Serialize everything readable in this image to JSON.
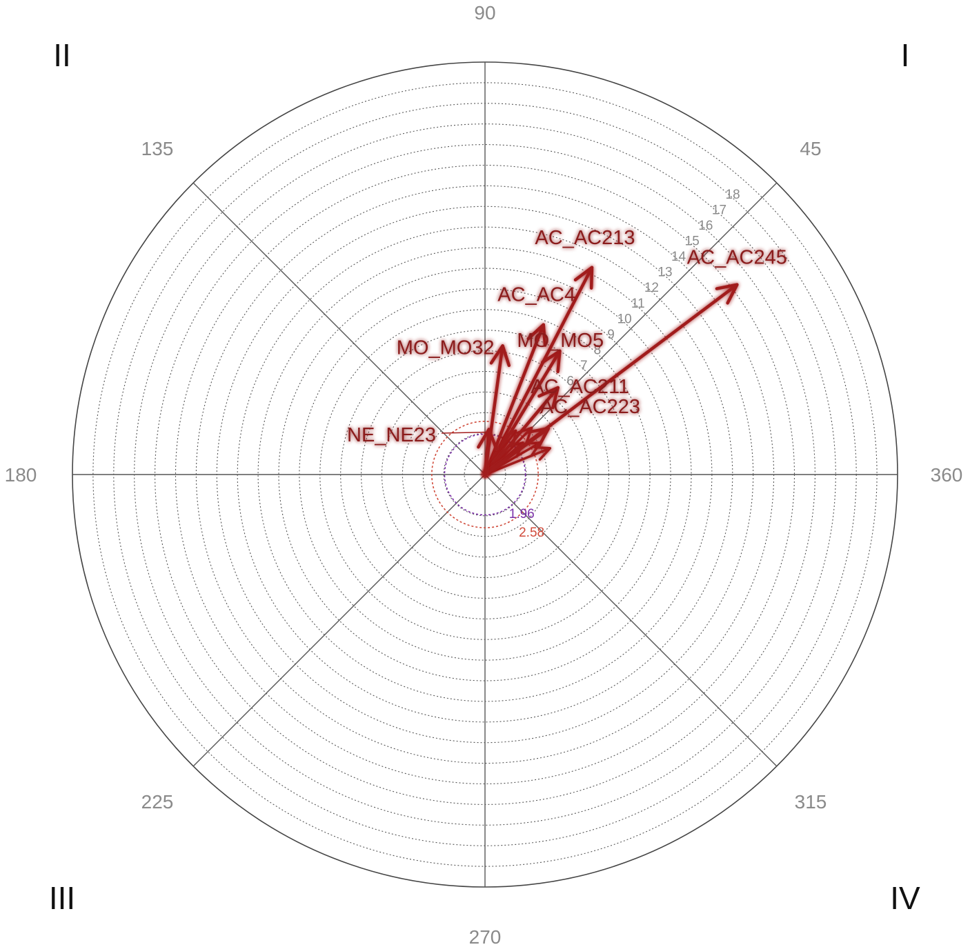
{
  "chart_data": {
    "type": "polar-vector",
    "angle_labels": [
      {
        "angle": 90,
        "text": "90"
      },
      {
        "angle": 45,
        "text": "45"
      },
      {
        "angle": 135,
        "text": "135"
      },
      {
        "angle": 180,
        "text": "180"
      },
      {
        "angle": 225,
        "text": "225"
      },
      {
        "angle": 270,
        "text": "270"
      },
      {
        "angle": 315,
        "text": "315"
      },
      {
        "angle": 360,
        "text": "360"
      }
    ],
    "quadrants": [
      {
        "name": "I",
        "position": "top-right"
      },
      {
        "name": "II",
        "position": "top-left"
      },
      {
        "name": "III",
        "position": "bottom-left"
      },
      {
        "name": "IV",
        "position": "bottom-right"
      }
    ],
    "radial_max": 20,
    "ring_labels": [
      "6",
      "7",
      "8",
      "9",
      "10",
      "11",
      "12",
      "13",
      "14",
      "15",
      "16",
      "17",
      "18"
    ],
    "significance_circles": [
      {
        "radius": 1.96,
        "label": "1.96",
        "color": "#7b2fa8"
      },
      {
        "radius": 2.58,
        "label": "2.58",
        "color": "#d04a3a"
      }
    ],
    "vectors": [
      {
        "name": "AC_AC245",
        "angle": 37.0,
        "length": 15.3,
        "label_side": "above"
      },
      {
        "name": "AC_AC213",
        "angle": 62.7,
        "length": 11.3,
        "label_side": "above"
      },
      {
        "name": "AC_AC4",
        "angle": 68.7,
        "length": 7.8,
        "label_side": "above"
      },
      {
        "name": "MO_MO5",
        "angle": 58.8,
        "length": 7.0,
        "label_side": "right"
      },
      {
        "name": "MO_MO32",
        "angle": 82.2,
        "length": 6.3,
        "label_side": "left"
      },
      {
        "name": "AC_AC211",
        "angle": 50.0,
        "length": 5.5,
        "label_side": "above"
      },
      {
        "name": "AC_AC223",
        "angle": 36.0,
        "length": 3.8,
        "label_side": "right"
      },
      {
        "name": "NE_NE23",
        "angle": 85.0,
        "length": 2.2,
        "label_side": "left"
      }
    ],
    "extra_vectors": [
      {
        "angle": 45.0,
        "length": 3.2
      },
      {
        "angle": 30.0,
        "length": 3.1
      },
      {
        "angle": 22.0,
        "length": 3.4
      },
      {
        "angle": 55.0,
        "length": 2.6
      },
      {
        "angle": 40.0,
        "length": 2.4
      }
    ],
    "grid": true
  }
}
